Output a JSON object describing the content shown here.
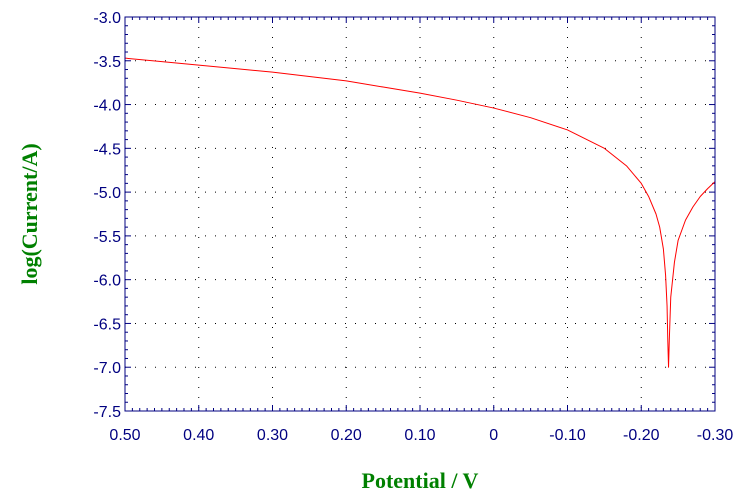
{
  "chart_data": {
    "type": "line",
    "title": "",
    "xlabel": "Potential / V",
    "ylabel": "log(Current/A)",
    "xlim": [
      0.5,
      -0.3
    ],
    "ylim": [
      -7.5,
      -3.0
    ],
    "x_reversed": true,
    "grid": true,
    "grid_style": "dotted",
    "x_ticks": [
      "0.50",
      "0.40",
      "0.30",
      "0.20",
      "0.10",
      "0",
      "-0.10",
      "-0.20",
      "-0.30"
    ],
    "y_ticks": [
      "-3.0",
      "-3.5",
      "-4.0",
      "-4.5",
      "-5.0",
      "-5.5",
      "-6.0",
      "-6.5",
      "-7.0",
      "-7.5"
    ],
    "series": [
      {
        "color": "#ff0000",
        "x": [
          0.5,
          0.45,
          0.4,
          0.35,
          0.3,
          0.25,
          0.2,
          0.15,
          0.1,
          0.05,
          0.0,
          -0.05,
          -0.1,
          -0.15,
          -0.18,
          -0.2,
          -0.21,
          -0.22,
          -0.225,
          -0.23,
          -0.233,
          -0.235,
          -0.236,
          -0.237,
          -0.238,
          -0.24,
          -0.245,
          -0.25,
          -0.26,
          -0.27,
          -0.28,
          -0.29,
          -0.3
        ],
        "y": [
          -3.47,
          -3.51,
          -3.55,
          -3.59,
          -3.63,
          -3.68,
          -3.73,
          -3.8,
          -3.87,
          -3.95,
          -4.04,
          -4.15,
          -4.29,
          -4.5,
          -4.7,
          -4.9,
          -5.05,
          -5.25,
          -5.4,
          -5.65,
          -5.95,
          -6.3,
          -6.7,
          -7.0,
          -6.7,
          -6.2,
          -5.8,
          -5.55,
          -5.32,
          -5.17,
          -5.05,
          -4.96,
          -4.88
        ]
      }
    ]
  }
}
